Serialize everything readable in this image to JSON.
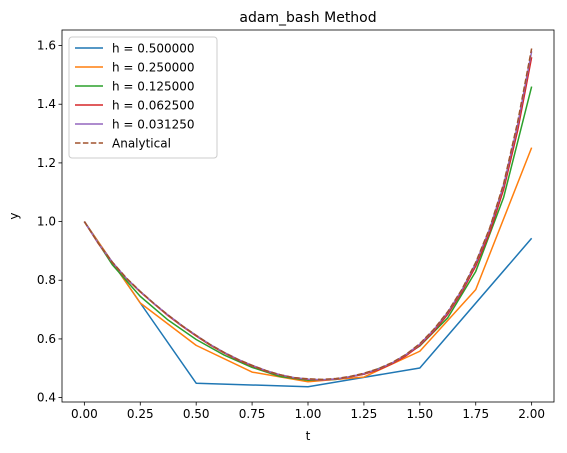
{
  "chart_data": {
    "type": "line",
    "title": "adam_bash Method",
    "xlabel": "t",
    "ylabel": "y",
    "xlim": [
      -0.1,
      2.1
    ],
    "ylim": [
      0.385,
      1.653
    ],
    "xticks": [
      0.0,
      0.25,
      0.5,
      0.75,
      1.0,
      1.25,
      1.5,
      1.75,
      2.0
    ],
    "xtick_labels": [
      "0.00",
      "0.25",
      "0.50",
      "0.75",
      "1.00",
      "1.25",
      "1.50",
      "1.75",
      "2.00"
    ],
    "yticks": [
      0.4,
      0.6,
      0.8,
      1.0,
      1.2,
      1.4,
      1.6
    ],
    "ytick_labels": [
      "0.4",
      "0.6",
      "0.8",
      "1.0",
      "1.2",
      "1.4",
      "1.6"
    ],
    "grid": false,
    "legend_position": "upper-left",
    "series": [
      {
        "name": "h = 0.500000",
        "color": "#1f77b4",
        "style": "solid",
        "x": [
          0.0,
          0.25,
          0.5,
          1.0,
          1.5,
          2.0
        ],
        "y": [
          1.0,
          0.7225,
          0.449,
          0.437,
          0.501,
          0.943
        ]
      },
      {
        "name": "h = 0.250000",
        "color": "#ff7f0e",
        "style": "solid",
        "x": [
          0.0,
          0.25,
          0.5,
          0.75,
          1.0,
          1.25,
          1.5,
          1.75,
          2.0
        ],
        "y": [
          1.0,
          0.7225,
          0.578,
          0.487,
          0.454,
          0.47,
          0.558,
          0.768,
          1.252
        ]
      },
      {
        "name": "h = 0.125000",
        "color": "#2ca02c",
        "style": "solid",
        "x": [
          0.0,
          0.125,
          0.25,
          0.375,
          0.5,
          0.625,
          0.75,
          0.875,
          1.0,
          1.125,
          1.25,
          1.375,
          1.5,
          1.625,
          1.75,
          1.875,
          2.0
        ],
        "y": [
          1.0,
          0.853,
          0.745,
          0.664,
          0.598,
          0.545,
          0.503,
          0.472,
          0.459,
          0.462,
          0.48,
          0.516,
          0.576,
          0.672,
          0.83,
          1.083,
          1.46
        ]
      },
      {
        "name": "h = 0.062500",
        "color": "#d62728",
        "style": "solid",
        "x": [
          0.0,
          0.0625,
          0.125,
          0.1875,
          0.25,
          0.3125,
          0.375,
          0.4375,
          0.5,
          0.5625,
          0.625,
          0.6875,
          0.75,
          0.8125,
          0.875,
          0.9375,
          1.0,
          1.0625,
          1.125,
          1.1875,
          1.25,
          1.3125,
          1.375,
          1.4375,
          1.5,
          1.5625,
          1.625,
          1.6875,
          1.75,
          1.8125,
          1.875,
          1.9375,
          2.0
        ],
        "y": [
          1.0,
          0.925,
          0.86,
          0.806,
          0.76,
          0.719,
          0.679,
          0.643,
          0.61,
          0.579,
          0.552,
          0.528,
          0.508,
          0.49,
          0.477,
          0.467,
          0.462,
          0.46,
          0.463,
          0.47,
          0.48,
          0.494,
          0.515,
          0.542,
          0.578,
          0.626,
          0.684,
          0.759,
          0.848,
          0.962,
          1.11,
          1.31,
          1.56
        ]
      },
      {
        "name": "h = 0.031250",
        "color": "#9467bd",
        "style": "solid",
        "x": [
          0.0,
          0.0625,
          0.125,
          0.1875,
          0.25,
          0.3125,
          0.375,
          0.4375,
          0.5,
          0.5625,
          0.625,
          0.6875,
          0.75,
          0.8125,
          0.875,
          0.9375,
          1.0,
          1.0625,
          1.125,
          1.1875,
          1.25,
          1.3125,
          1.375,
          1.4375,
          1.5,
          1.5625,
          1.625,
          1.6875,
          1.75,
          1.8125,
          1.875,
          1.9375,
          2.0
        ],
        "y": [
          1.0,
          0.926,
          0.862,
          0.807,
          0.762,
          0.72,
          0.681,
          0.645,
          0.612,
          0.581,
          0.554,
          0.53,
          0.51,
          0.492,
          0.478,
          0.468,
          0.463,
          0.461,
          0.464,
          0.471,
          0.482,
          0.497,
          0.518,
          0.546,
          0.582,
          0.631,
          0.691,
          0.766,
          0.858,
          0.975,
          1.125,
          1.33,
          1.58
        ]
      },
      {
        "name": "Analytical",
        "color": "#a0522d",
        "style": "dashed",
        "x": [
          0.0,
          0.0625,
          0.125,
          0.1875,
          0.25,
          0.3125,
          0.375,
          0.4375,
          0.5,
          0.5625,
          0.625,
          0.6875,
          0.75,
          0.8125,
          0.875,
          0.9375,
          1.0,
          1.0625,
          1.125,
          1.1875,
          1.25,
          1.3125,
          1.375,
          1.4375,
          1.5,
          1.5625,
          1.625,
          1.6875,
          1.75,
          1.8125,
          1.875,
          1.9375,
          2.0
        ],
        "y": [
          1.0,
          0.926,
          0.862,
          0.808,
          0.762,
          0.72,
          0.681,
          0.645,
          0.612,
          0.581,
          0.554,
          0.53,
          0.51,
          0.492,
          0.478,
          0.468,
          0.464,
          0.462,
          0.465,
          0.472,
          0.483,
          0.498,
          0.519,
          0.547,
          0.584,
          0.633,
          0.693,
          0.768,
          0.861,
          0.978,
          1.13,
          1.34,
          1.59
        ]
      }
    ]
  }
}
